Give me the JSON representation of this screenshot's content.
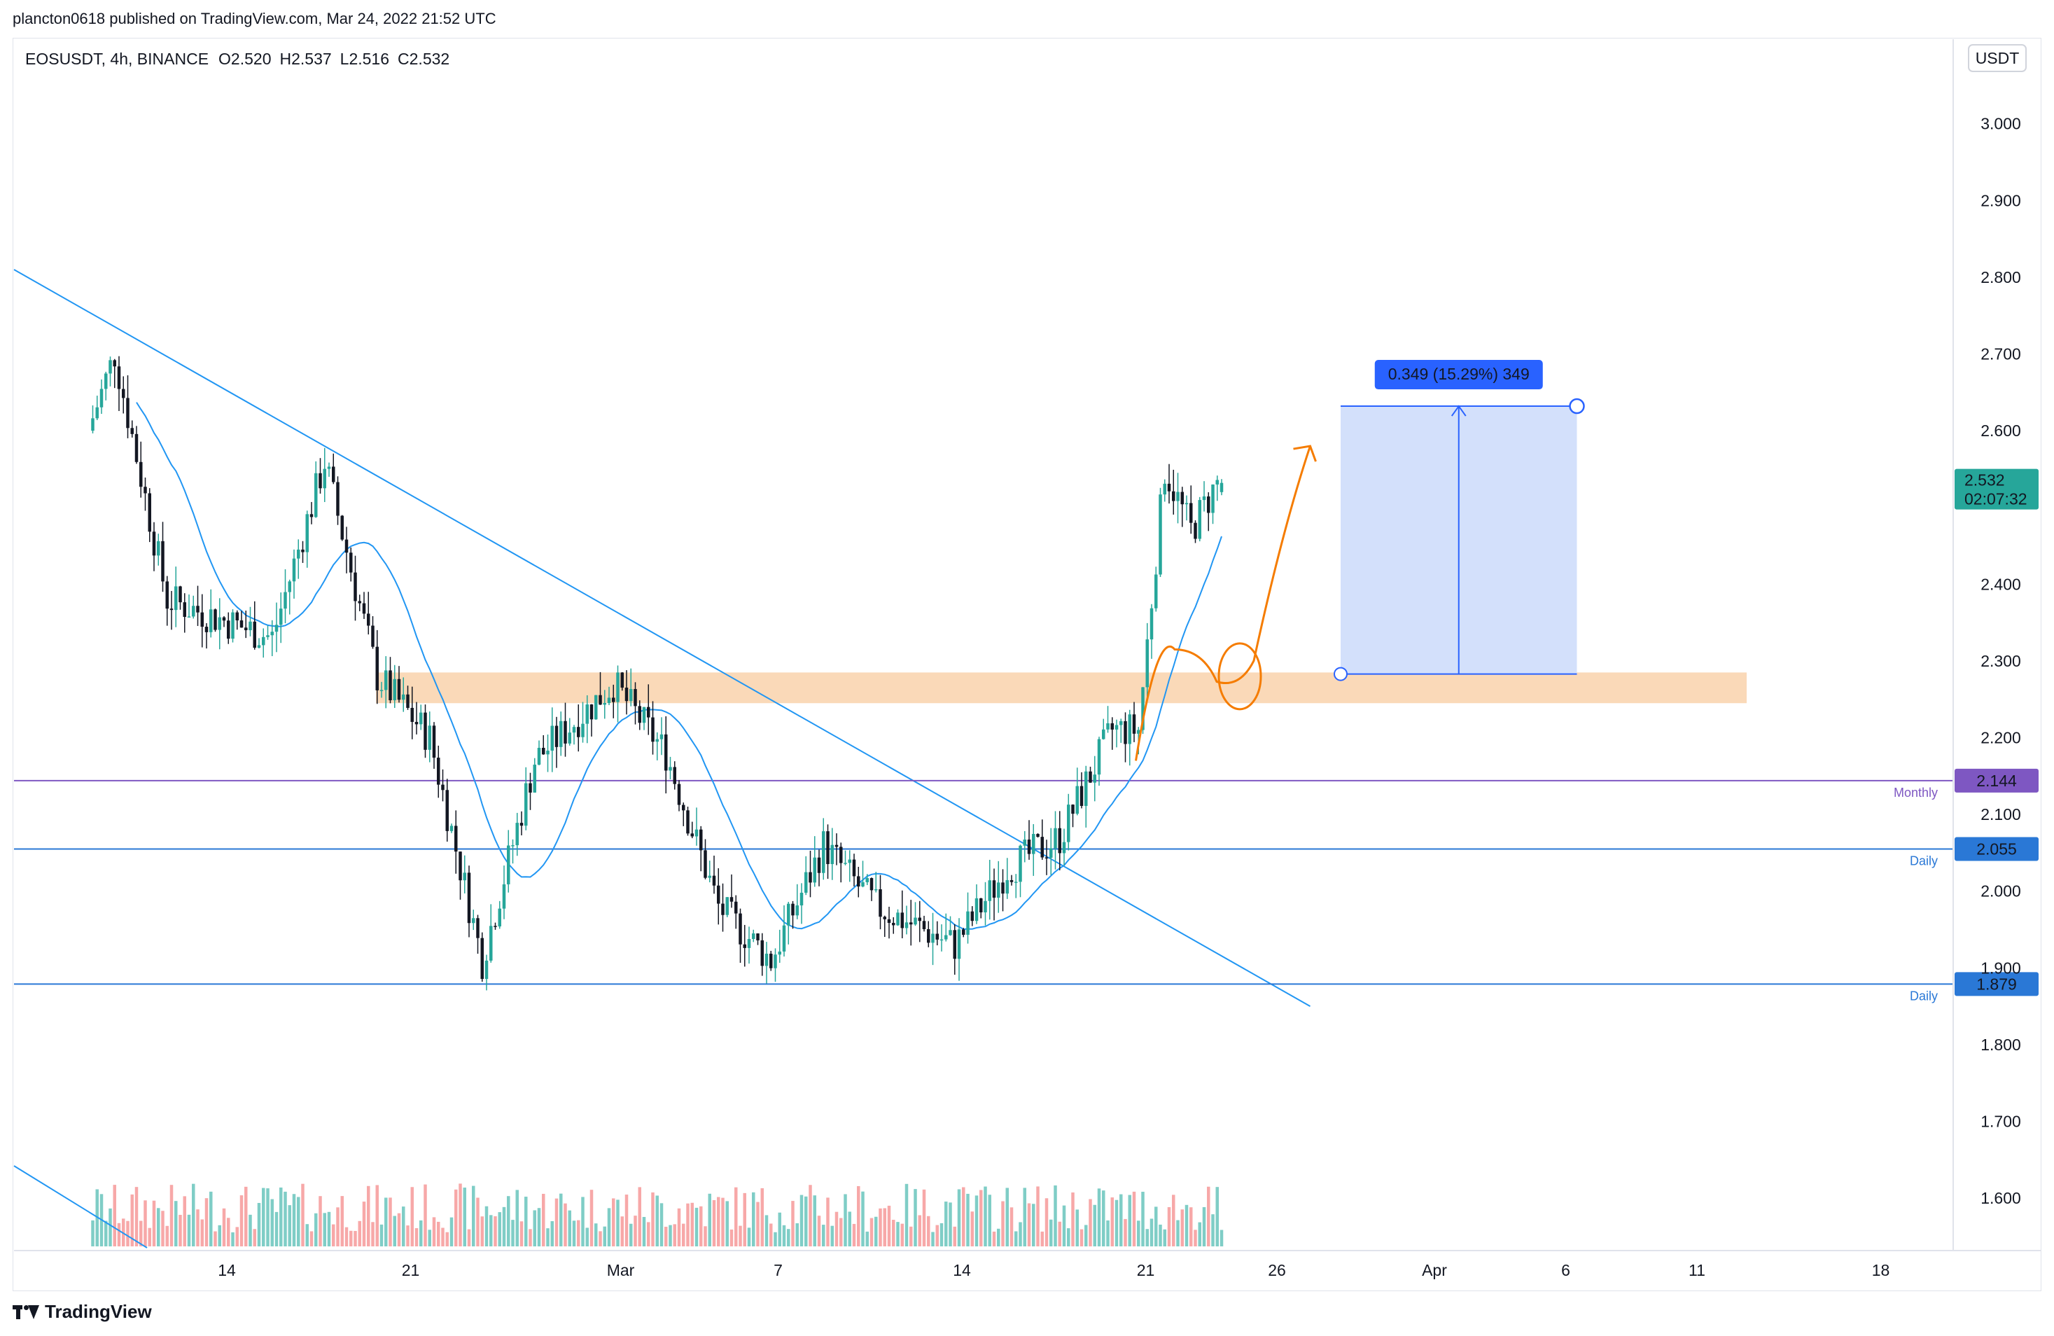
{
  "header": {
    "published_text": "plancton0618 published on TradingView.com, Mar 24, 2022 21:52 UTC"
  },
  "footer": {
    "brand": "TradingView"
  },
  "colors": {
    "up": "#26a69a",
    "down": "#131722",
    "ma": "#2196f3",
    "trendline": "#2196f3",
    "vol_up": "#7fcdc6",
    "vol_down": "#f7a8a8",
    "zone": "#f9cfa6",
    "monthly": "#7e57c2",
    "daily": "#2a78d6",
    "orange": "#f57c00",
    "target_box": "#d3e0fb",
    "target_label": "#2962ff",
    "price_label": "#26a69a"
  },
  "chart_data": {
    "type": "candlestick",
    "symbol": "EOSUSDT",
    "timeframe": "4h",
    "exchange": "BINANCE",
    "ohlc": {
      "open_label": "O2.520",
      "high_label": "H2.537",
      "low_label": "L2.516",
      "close_label": "C2.532"
    },
    "currency_button": "USDT",
    "ylim": [
      1.56,
      3.07
    ],
    "y_ticks": [
      "3.000",
      "2.900",
      "2.800",
      "2.700",
      "2.600",
      "2.400",
      "2.300",
      "2.200",
      "2.100",
      "2.000",
      "1.900",
      "1.800",
      "1.700",
      "1.600"
    ],
    "x_ticks": [
      "14",
      "21",
      "Mar",
      "7",
      "14",
      "21",
      "26",
      "Apr",
      "6",
      "11",
      "18"
    ],
    "key_points": [
      {
        "date": "Feb 9",
        "price": 2.6
      },
      {
        "date": "Feb 10",
        "price": 2.7
      },
      {
        "date": "Feb 12",
        "price": 2.38
      },
      {
        "date": "Feb 16",
        "price": 2.33
      },
      {
        "date": "Feb 18",
        "price": 2.56
      },
      {
        "date": "Feb 20",
        "price": 2.28
      },
      {
        "date": "Feb 22",
        "price": 2.2
      },
      {
        "date": "Feb 24",
        "price": 1.91
      },
      {
        "date": "Feb 26",
        "price": 2.17
      },
      {
        "date": "Mar 1",
        "price": 2.27
      },
      {
        "date": "Mar 3",
        "price": 2.18
      },
      {
        "date": "Mar 5",
        "price": 1.98
      },
      {
        "date": "Mar 7",
        "price": 1.91
      },
      {
        "date": "Mar 9",
        "price": 2.06
      },
      {
        "date": "Mar 11",
        "price": 1.98
      },
      {
        "date": "Mar 14",
        "price": 1.93
      },
      {
        "date": "Mar 16",
        "price": 2.03
      },
      {
        "date": "Mar 18",
        "price": 2.07
      },
      {
        "date": "Mar 20",
        "price": 2.21
      },
      {
        "date": "Mar 21",
        "price": 2.21
      },
      {
        "date": "Mar 22",
        "price": 2.55
      },
      {
        "date": "Mar 23",
        "price": 2.47
      },
      {
        "date": "Mar 24",
        "price": 2.532
      }
    ],
    "horizontal_levels": [
      {
        "price": 2.144,
        "label": "Monthly",
        "value_label": "2.144",
        "color": "#7e57c2"
      },
      {
        "price": 2.055,
        "label": "Daily",
        "value_label": "2.055",
        "color": "#2a78d6"
      },
      {
        "price": 1.879,
        "label": "Daily",
        "value_label": "1.879",
        "color": "#2a78d6"
      }
    ],
    "zone": {
      "price_low": 2.245,
      "price_high": 2.285
    },
    "current_price": {
      "value_label": "2.532",
      "countdown": "02:07:32"
    },
    "measure": {
      "label": "0.349 (15.29%) 349",
      "from_price": 2.283,
      "to_price": 2.632
    },
    "trendline": {
      "from": {
        "date": "Feb 6",
        "price": 2.81
      },
      "to": {
        "date": "Mar 27",
        "price": 1.85
      }
    }
  }
}
